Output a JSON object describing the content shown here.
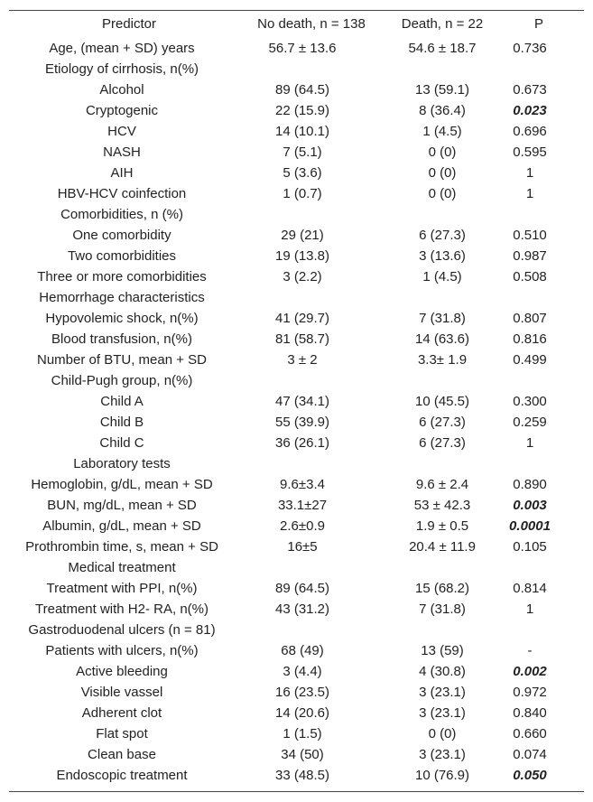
{
  "table": {
    "header": [
      "Predictor",
      "No death, n = 138",
      "Death, n = 22",
      "P"
    ],
    "rows": [
      {
        "cells": [
          "Age, (mean + SD) years",
          "56.7 ± 13.6",
          "54.6 ± 18.7",
          "0.736"
        ]
      },
      {
        "cells": [
          "Etiology of cirrhosis, n(%)"
        ]
      },
      {
        "cells": [
          "Alcohol",
          "89 (64.5)",
          "13 (59.1)",
          "0.673"
        ]
      },
      {
        "cells": [
          "Cryptogenic",
          "22 (15.9)",
          "8 (36.4)",
          "0.023"
        ],
        "p_bold": true
      },
      {
        "cells": [
          "HCV",
          "14 (10.1)",
          "1 (4.5)",
          "0.696"
        ]
      },
      {
        "cells": [
          "NASH",
          "7 (5.1)",
          "0 (0)",
          "0.595"
        ]
      },
      {
        "cells": [
          "AIH",
          "5 (3.6)",
          "0 (0)",
          "1"
        ]
      },
      {
        "cells": [
          "HBV-HCV coinfection",
          "1 (0.7)",
          "0 (0)",
          "1"
        ]
      },
      {
        "cells": [
          "Comorbidities, n (%)"
        ]
      },
      {
        "cells": [
          "One comorbidity",
          "29 (21)",
          "6 (27.3)",
          "0.510"
        ]
      },
      {
        "cells": [
          "Two comorbidities",
          "19 (13.8)",
          "3 (13.6)",
          "0.987"
        ]
      },
      {
        "cells": [
          "Three or more comorbidities",
          "3 (2.2)",
          "1 (4.5)",
          "0.508"
        ]
      },
      {
        "cells": [
          "Hemorrhage characteristics"
        ]
      },
      {
        "cells": [
          "Hypovolemic shock, n(%)",
          "41 (29.7)",
          "7 (31.8)",
          "0.807"
        ]
      },
      {
        "cells": [
          "Blood transfusion, n(%)",
          "81 (58.7)",
          "14 (63.6)",
          "0.816"
        ]
      },
      {
        "cells": [
          "Number of BTU, mean + SD",
          "3 ± 2",
          "3.3± 1.9",
          "0.499"
        ]
      },
      {
        "cells": [
          "Child-Pugh group, n(%)"
        ]
      },
      {
        "cells": [
          "Child A",
          "47 (34.1)",
          "10 (45.5)",
          "0.300"
        ]
      },
      {
        "cells": [
          "Child B",
          "55 (39.9)",
          "6 (27.3)",
          "0.259"
        ]
      },
      {
        "cells": [
          "Child C",
          "36 (26.1)",
          "6 (27.3)",
          "1"
        ]
      },
      {
        "cells": [
          "Laboratory tests"
        ]
      },
      {
        "cells": [
          "Hemoglobin, g/dL, mean + SD",
          "9.6±3.4",
          "9.6 ± 2.4",
          "0.890"
        ]
      },
      {
        "cells": [
          "BUN, mg/dL, mean + SD",
          "33.1±27",
          "53 ± 42.3",
          "0.003"
        ],
        "p_bold": true
      },
      {
        "cells": [
          "Albumin, g/dL, mean + SD",
          "2.6±0.9",
          "1.9 ± 0.5",
          "0.0001"
        ],
        "p_bold": true
      },
      {
        "cells": [
          "Prothrombin time, s, mean + SD",
          "16±5",
          "20.4 ± 11.9",
          "0.105"
        ]
      },
      {
        "cells": [
          "Medical treatment"
        ]
      },
      {
        "cells": [
          "Treatment with PPI, n(%)",
          "89 (64.5)",
          "15 (68.2)",
          "0.814"
        ]
      },
      {
        "cells": [
          "Treatment with H2- RA, n(%)",
          "43 (31.2)",
          "7 (31.8)",
          "1"
        ]
      },
      {
        "cells": [
          "Gastroduodenal ulcers (n = 81)"
        ]
      },
      {
        "cells": [
          "Patients with ulcers, n(%)",
          "68 (49)",
          "13 (59)",
          "-"
        ]
      },
      {
        "cells": [
          "Active bleeding",
          "3 (4.4)",
          "4 (30.8)",
          "0.002"
        ],
        "p_bold": true
      },
      {
        "cells": [
          "Visible vassel",
          "16 (23.5)",
          "3 (23.1)",
          "0.972"
        ]
      },
      {
        "cells": [
          "Adherent clot",
          "14 (20.6)",
          "3 (23.1)",
          "0.840"
        ]
      },
      {
        "cells": [
          "Flat spot",
          "1 (1.5)",
          "0 (0)",
          "0.660"
        ]
      },
      {
        "cells": [
          "Clean base",
          "34 (50)",
          "3 (23.1)",
          "0.074"
        ]
      },
      {
        "cells": [
          "Endoscopic treatment",
          "33 (48.5)",
          "10 (76.9)",
          "0.050"
        ],
        "p_bold": true
      }
    ]
  }
}
